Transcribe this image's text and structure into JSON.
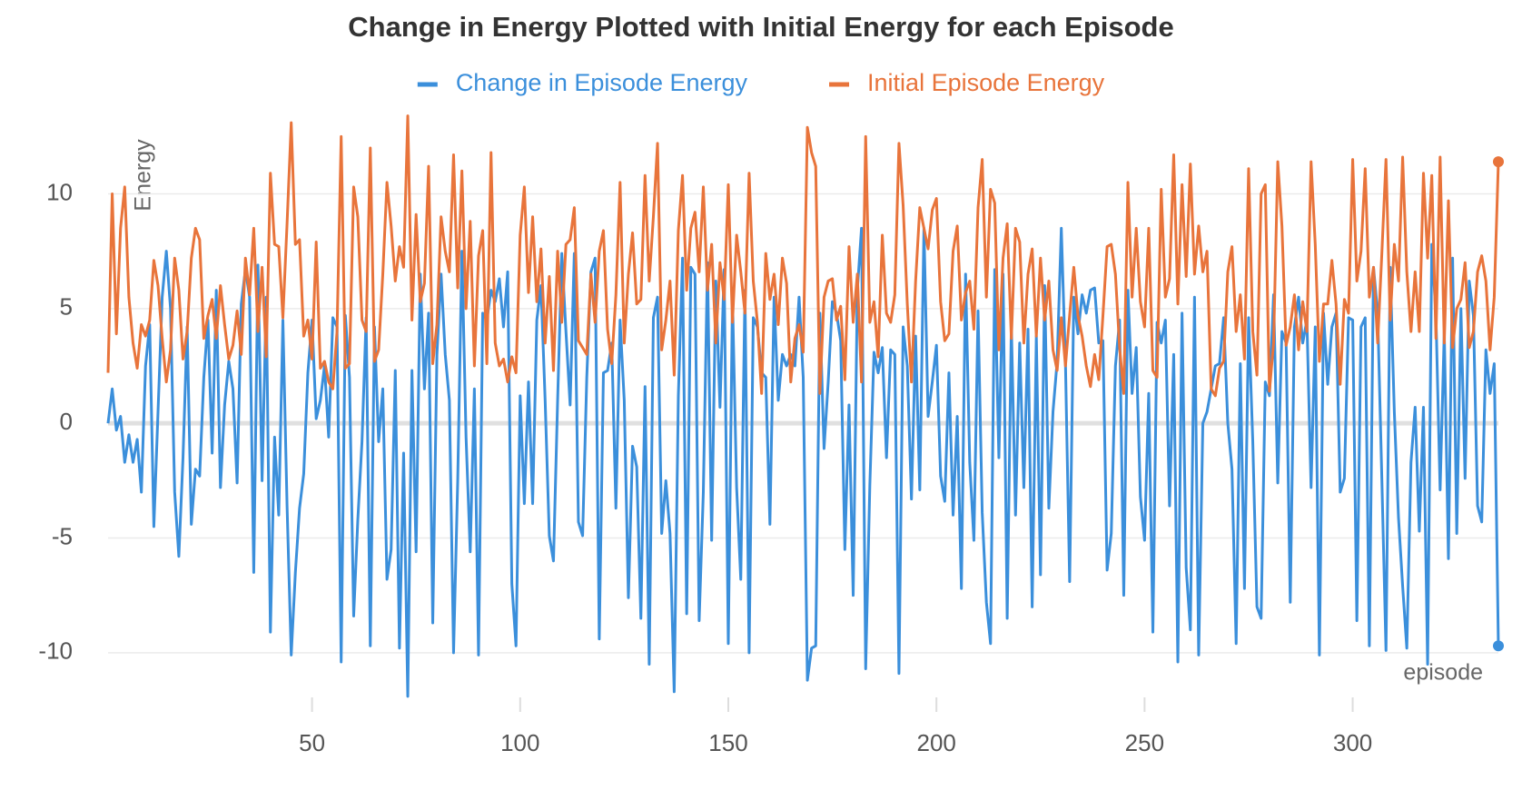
{
  "chart_data": {
    "type": "line",
    "title": "Change in Energy Plotted with Initial Energy for each Episode",
    "y_label": "Energy",
    "x_label": "episode",
    "xlim": [
      1,
      335
    ],
    "xticks": [
      50,
      100,
      150,
      200,
      250,
      300
    ],
    "ylim": [
      -12.5,
      13.7
    ],
    "yticks": [
      -10,
      -5,
      0,
      5,
      10
    ],
    "grid": true,
    "legend": "top",
    "x": [
      1,
      2,
      3,
      4,
      5,
      6,
      7,
      8,
      9,
      10,
      11,
      12,
      13,
      14,
      15,
      16,
      17,
      18,
      19,
      20,
      21,
      22,
      23,
      24,
      25,
      26,
      27,
      28,
      29,
      30,
      31,
      32,
      33,
      34,
      35,
      36,
      37,
      38,
      39,
      40,
      41,
      42,
      43,
      44,
      45,
      46,
      47,
      48,
      49,
      50,
      51,
      52,
      53,
      54,
      55,
      56,
      57,
      58,
      59,
      60,
      61,
      62,
      63,
      64,
      65,
      66,
      67,
      68,
      69,
      70,
      71,
      72,
      73,
      74,
      75,
      76,
      77,
      78,
      79,
      80,
      81,
      82,
      83,
      84,
      85,
      86,
      87,
      88,
      89,
      90,
      91,
      92,
      93,
      94,
      95,
      96,
      97,
      98,
      99,
      100,
      101,
      102,
      103,
      104,
      105,
      106,
      107,
      108,
      109,
      110,
      111,
      112,
      113,
      114,
      115,
      116,
      117,
      118,
      119,
      120,
      121,
      122,
      123,
      124,
      125,
      126,
      127,
      128,
      129,
      130,
      131,
      132,
      133,
      134,
      135,
      136,
      137,
      138,
      139,
      140,
      141,
      142,
      143,
      144,
      145,
      146,
      147,
      148,
      149,
      150,
      151,
      152,
      153,
      154,
      155,
      156,
      157,
      158,
      159,
      160,
      161,
      162,
      163,
      164,
      165,
      166,
      167,
      168,
      169,
      170,
      171,
      172,
      173,
      174,
      175,
      176,
      177,
      178,
      179,
      180,
      181,
      182,
      183,
      184,
      185,
      186,
      187,
      188,
      189,
      190,
      191,
      192,
      193,
      194,
      195,
      196,
      197,
      198,
      199,
      200,
      201,
      202,
      203,
      204,
      205,
      206,
      207,
      208,
      209,
      210,
      211,
      212,
      213,
      214,
      215,
      216,
      217,
      218,
      219,
      220,
      221,
      222,
      223,
      224,
      225,
      226,
      227,
      228,
      229,
      230,
      231,
      232,
      233,
      234,
      235,
      236,
      237,
      238,
      239,
      240,
      241,
      242,
      243,
      244,
      245,
      246,
      247,
      248,
      249,
      250,
      251,
      252,
      253,
      254,
      255,
      256,
      257,
      258,
      259,
      260,
      261,
      262,
      263,
      264,
      265,
      266,
      267,
      268,
      269,
      270,
      271,
      272,
      273,
      274,
      275,
      276,
      277,
      278,
      279,
      280,
      281,
      282,
      283,
      284,
      285,
      286,
      287,
      288,
      289,
      290,
      291,
      292,
      293,
      294,
      295,
      296,
      297,
      298,
      299,
      300,
      301,
      302,
      303,
      304,
      305,
      306,
      307,
      308,
      309,
      310,
      311,
      312,
      313,
      314,
      315,
      316,
      317,
      318,
      319,
      320,
      321,
      322,
      323,
      324,
      325,
      326,
      327,
      328,
      329,
      330,
      331,
      332,
      333,
      334,
      335
    ],
    "series": [
      {
        "name": "Change in Episode Energy",
        "color": "#3b8fdb",
        "values": [
          0,
          1.5,
          -0.3,
          0.3,
          -1.7,
          -0.5,
          -1.7,
          -0.7,
          -3,
          2.5,
          4.3,
          -4.5,
          0.5,
          5.5,
          7.5,
          5,
          -3,
          -5.8,
          -1.5,
          4.2,
          -4.4,
          -2,
          -2.3,
          2,
          4.5,
          -1.3,
          5.8,
          -2.8,
          0.8,
          2.7,
          1.5,
          -2.6,
          5.2,
          6.7,
          5.5,
          -6.5,
          6.9,
          -2.5,
          5.5,
          -9.1,
          -0.6,
          -4,
          4.5,
          -3.6,
          -10.1,
          -6.5,
          -3.7,
          -2.2,
          2.2,
          4.5,
          0.2,
          1,
          2.5,
          -0.6,
          4.6,
          4.2,
          -10.4,
          4.7,
          2,
          -8.4,
          -4.2,
          -0.8,
          4.6,
          -9.7,
          4.2,
          -0.8,
          1.5,
          -6.8,
          -5.5,
          2.3,
          -9.8,
          -1.3,
          -11.9,
          2.3,
          -5.6,
          6.5,
          1.5,
          4.8,
          -8.7,
          3,
          6.5,
          3,
          1,
          -10,
          -2.5,
          7.5,
          -0.6,
          -5.6,
          1.5,
          -10.1,
          4.8,
          4.5,
          5.8,
          5.3,
          6.3,
          4.2,
          6.6,
          -7,
          -9.7,
          1.2,
          -3.5,
          1.8,
          -3.5,
          4.5,
          6,
          1,
          -4.9,
          -6,
          1,
          7.4,
          4,
          0.8,
          7.4,
          -4.3,
          -4.9,
          2,
          6.6,
          7.2,
          -9.4,
          2.2,
          2.3,
          3.5,
          -3.7,
          4.5,
          1,
          -7.6,
          -1,
          -1.9,
          -8.5,
          1.6,
          -10.5,
          4.6,
          5.5,
          -4.8,
          -2.5,
          -4.8,
          -11.7,
          1.2,
          7.2,
          -8.3,
          6.8,
          6.5,
          -8.6,
          -3,
          7,
          -5.1,
          6.2,
          0.7,
          6.7,
          -9.6,
          5.5,
          -2.8,
          -6.8,
          5.8,
          -10,
          4.6,
          4.2,
          2.2,
          2,
          -4.4,
          5.5,
          1,
          3,
          2.5,
          3,
          2.5,
          5.5,
          2,
          -11.2,
          -9.8,
          -9.7,
          4.8,
          -1.1,
          1.8,
          5.3,
          4.8,
          3.6,
          -5.5,
          0.8,
          -7.5,
          5.8,
          8.5,
          -10.7,
          -2.7,
          3.1,
          2.2,
          3.3,
          -1.5,
          3.2,
          3,
          -10.9,
          4.2,
          2.5,
          -3.3,
          3.8,
          -2.9,
          8.5,
          0.3,
          1.8,
          3.4,
          -2.3,
          -3.4,
          2.2,
          -4,
          0.3,
          -7.2,
          6.5,
          -1.7,
          -5.1,
          4.9,
          -3.9,
          -7.8,
          -9.6,
          6.7,
          -1.5,
          6.5,
          -8.5,
          4.3,
          -4,
          3.5,
          -2.8,
          4.1,
          -8,
          3.8,
          -6.6,
          6,
          -3.7,
          0.5,
          2.7,
          8.5,
          2.6,
          -6.9,
          5.5,
          3.9,
          5.6,
          4.8,
          5.8,
          5.9,
          3.5,
          3.6,
          -6.4,
          -4.8,
          2.5,
          4.5,
          -7.5,
          5.8,
          1.3,
          3.3,
          -3.2,
          -5.1,
          1.3,
          -9.1,
          4.4,
          3.5,
          4.5,
          -3.6,
          3,
          -10.4,
          4.8,
          -6.3,
          -9,
          5.5,
          -10.1,
          0,
          0.5,
          1.5,
          2.5,
          2.6,
          4.6,
          0,
          -2,
          -9.6,
          2.6,
          -7.2,
          4.6,
          -0.8,
          -8,
          -8.5,
          1.8,
          1.2,
          5.6,
          -2.6,
          4,
          3.5,
          -7.8,
          4.2,
          5.5,
          3.5,
          4.5,
          -2.8,
          4.2,
          -10.1,
          4.8,
          1.7,
          4.2,
          4.8,
          -3,
          -2.4,
          4.6,
          4.5,
          -8.6,
          4.2,
          4.6,
          -9.7,
          6.8,
          4.8,
          -2.4,
          -9.9,
          6.8,
          0.5,
          -4.1,
          -7.1,
          -9.8,
          -1.7,
          0.7,
          -4.7,
          0.7,
          -10.5,
          7.8,
          4.7,
          -2.9,
          4,
          -5.9,
          7.2,
          -4.8,
          5,
          -2.4,
          6.2,
          4.7,
          -3.6,
          -4.3,
          3.2,
          1.3,
          2.6,
          -9.7
        ]
      },
      {
        "name": "Initial Episode Energy",
        "color": "#e8743b",
        "values": [
          2.2,
          10,
          3.9,
          8.5,
          10.3,
          5.5,
          3.5,
          2.4,
          4.3,
          3.8,
          4.5,
          7.1,
          6,
          3.7,
          1.8,
          3.2,
          7.2,
          5.8,
          2.8,
          4,
          7.2,
          8.5,
          8,
          3.7,
          4.7,
          5.4,
          3.7,
          6,
          4.3,
          2.8,
          3.4,
          4.9,
          3,
          7.2,
          5.6,
          8.5,
          4,
          6.8,
          2.9,
          10.9,
          7.8,
          7.7,
          4.6,
          8.7,
          13.1,
          7.8,
          8,
          3.8,
          4.5,
          2.8,
          7.9,
          2.4,
          2.7,
          1.8,
          1.5,
          4,
          12.5,
          2.4,
          2.6,
          10.3,
          9,
          4.5,
          4,
          12,
          2.7,
          3.2,
          6.5,
          10.5,
          8.6,
          6.2,
          7.7,
          6.8,
          13.4,
          4.5,
          9.1,
          5.3,
          6.1,
          11.2,
          2.6,
          4.3,
          9,
          7.5,
          6.6,
          11.7,
          5.9,
          11,
          5,
          8.8,
          2.5,
          7.3,
          8.4,
          2.6,
          11.8,
          3.5,
          2.5,
          2.8,
          1.8,
          2.9,
          2.2,
          8.2,
          10.3,
          5.7,
          9,
          5.3,
          7.6,
          3.5,
          6.4,
          2.3,
          7.5,
          4.4,
          7.8,
          8,
          9.4,
          3.6,
          3.3,
          3,
          6.5,
          4.4,
          7.5,
          8.4,
          4.1,
          2.6,
          5.6,
          10.5,
          3.5,
          6.5,
          8.3,
          5.2,
          5.4,
          10.8,
          6.2,
          9,
          12.2,
          3.2,
          4.5,
          6.2,
          2.1,
          8.4,
          10.8,
          5.8,
          8.5,
          9.2,
          6.6,
          10.3,
          5.8,
          7.8,
          3.5,
          7,
          5.4,
          10.4,
          4.4,
          8.2,
          6.6,
          4.8,
          10.9,
          6.2,
          4.4,
          1.3,
          7.4,
          5.4,
          6.5,
          4.3,
          7.2,
          6.1,
          1.8,
          3.7,
          4.3,
          3.1,
          12.9,
          11.8,
          11.2,
          1.3,
          5.5,
          6.2,
          6.3,
          4.5,
          5.1,
          1.9,
          7.7,
          4.4,
          6.5,
          1.8,
          12.5,
          4.4,
          5.3,
          2.9,
          8.2,
          4.8,
          4.4,
          5.6,
          12.2,
          9.5,
          5.2,
          1.8,
          6.2,
          9.4,
          8.5,
          7.6,
          9.3,
          9.8,
          5.3,
          3.6,
          3.9,
          7.5,
          8.6,
          4.5,
          5.7,
          6.2,
          4.1,
          9.4,
          11.5,
          5.5,
          10.2,
          9.6,
          3.2,
          7.2,
          8.7,
          3.7,
          8.5,
          7.9,
          3.5,
          6.5,
          7.6,
          3.8,
          7.2,
          4.5,
          6.2,
          3.2,
          2.3,
          4.6,
          2.5,
          4.7,
          6.8,
          4.7,
          3.8,
          2.5,
          1.6,
          3,
          1.9,
          4.7,
          7.7,
          7.8,
          6.5,
          3.3,
          1.3,
          10.5,
          5.5,
          8.5,
          5.3,
          4.2,
          8.5,
          2.3,
          2,
          10.2,
          5.5,
          6.3,
          11.7,
          5.2,
          10.4,
          6.4,
          11.3,
          6.5,
          8.6,
          6.6,
          7.5,
          1.5,
          1.2,
          2.4,
          2.7,
          6.6,
          7.7,
          4,
          5.6,
          2.8,
          11.1,
          4,
          2.1,
          10,
          10.4,
          1.4,
          3.5,
          11.4,
          8.6,
          3.4,
          4.2,
          5.6,
          3.2,
          5.3,
          4,
          11.4,
          7.8,
          2.7,
          5.2,
          5.2,
          7.1,
          5.2,
          1.7,
          5.4,
          4.8,
          11.5,
          6.2,
          7.5,
          11.1,
          5.5,
          6.8,
          3.5,
          7.4,
          11.5,
          4.5,
          7.8,
          6.2,
          11.6,
          6.6,
          4,
          6.6,
          4,
          10.9,
          7.2,
          10.8,
          3.7,
          11.6,
          3.5,
          9.7,
          3.3,
          5,
          5.4,
          7,
          3.3,
          4,
          6.6,
          7.3,
          6.2,
          3.2,
          5.5,
          11.4
        ]
      }
    ]
  }
}
